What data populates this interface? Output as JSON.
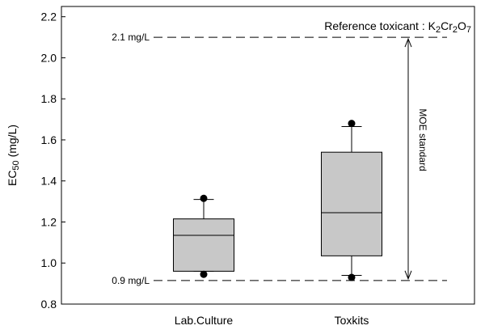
{
  "chart_data": {
    "type": "box",
    "title_parts": [
      {
        "t": "Reference toxicant : K",
        "sub": false
      },
      {
        "t": "2",
        "sub": true
      },
      {
        "t": "Cr",
        "sub": false
      },
      {
        "t": "2",
        "sub": true
      },
      {
        "t": "O",
        "sub": false
      },
      {
        "t": "7",
        "sub": true
      }
    ],
    "ylabel_parts": [
      {
        "t": "EC",
        "sub": false
      },
      {
        "t": "50",
        "sub": true
      },
      {
        "t": " (mg/L)",
        "sub": false
      }
    ],
    "ylim": [
      0.8,
      2.25
    ],
    "yticks": [
      0.8,
      1.0,
      1.2,
      1.4,
      1.6,
      1.8,
      2.0,
      2.2
    ],
    "ytick_labels": [
      "0.8",
      "1.0",
      "1.2",
      "1.4",
      "1.6",
      "1.8",
      "2.0",
      "2.2"
    ],
    "categories": [
      "Lab.Culture",
      "Toxkits"
    ],
    "boxes": [
      {
        "category": "Lab.Culture",
        "whisker_low": 0.96,
        "q1": 0.96,
        "median": 1.135,
        "q3": 1.215,
        "whisker_high": 1.31,
        "outliers": [
          1.315,
          0.945
        ]
      },
      {
        "category": "Toxkits",
        "whisker_low": 0.94,
        "q1": 1.035,
        "median": 1.245,
        "q3": 1.54,
        "whisker_high": 1.665,
        "outliers": [
          1.68,
          0.93
        ]
      }
    ],
    "reference_lines": [
      {
        "value": 2.1,
        "label": "2.1 mg/L"
      },
      {
        "value": 0.915,
        "label": "0.9 mg/L"
      }
    ],
    "range_annotation": {
      "low": 0.915,
      "high": 2.1,
      "label": "MOE standard"
    },
    "colors": {
      "box_fill": "#c8c8c8",
      "line": "#000000"
    }
  }
}
